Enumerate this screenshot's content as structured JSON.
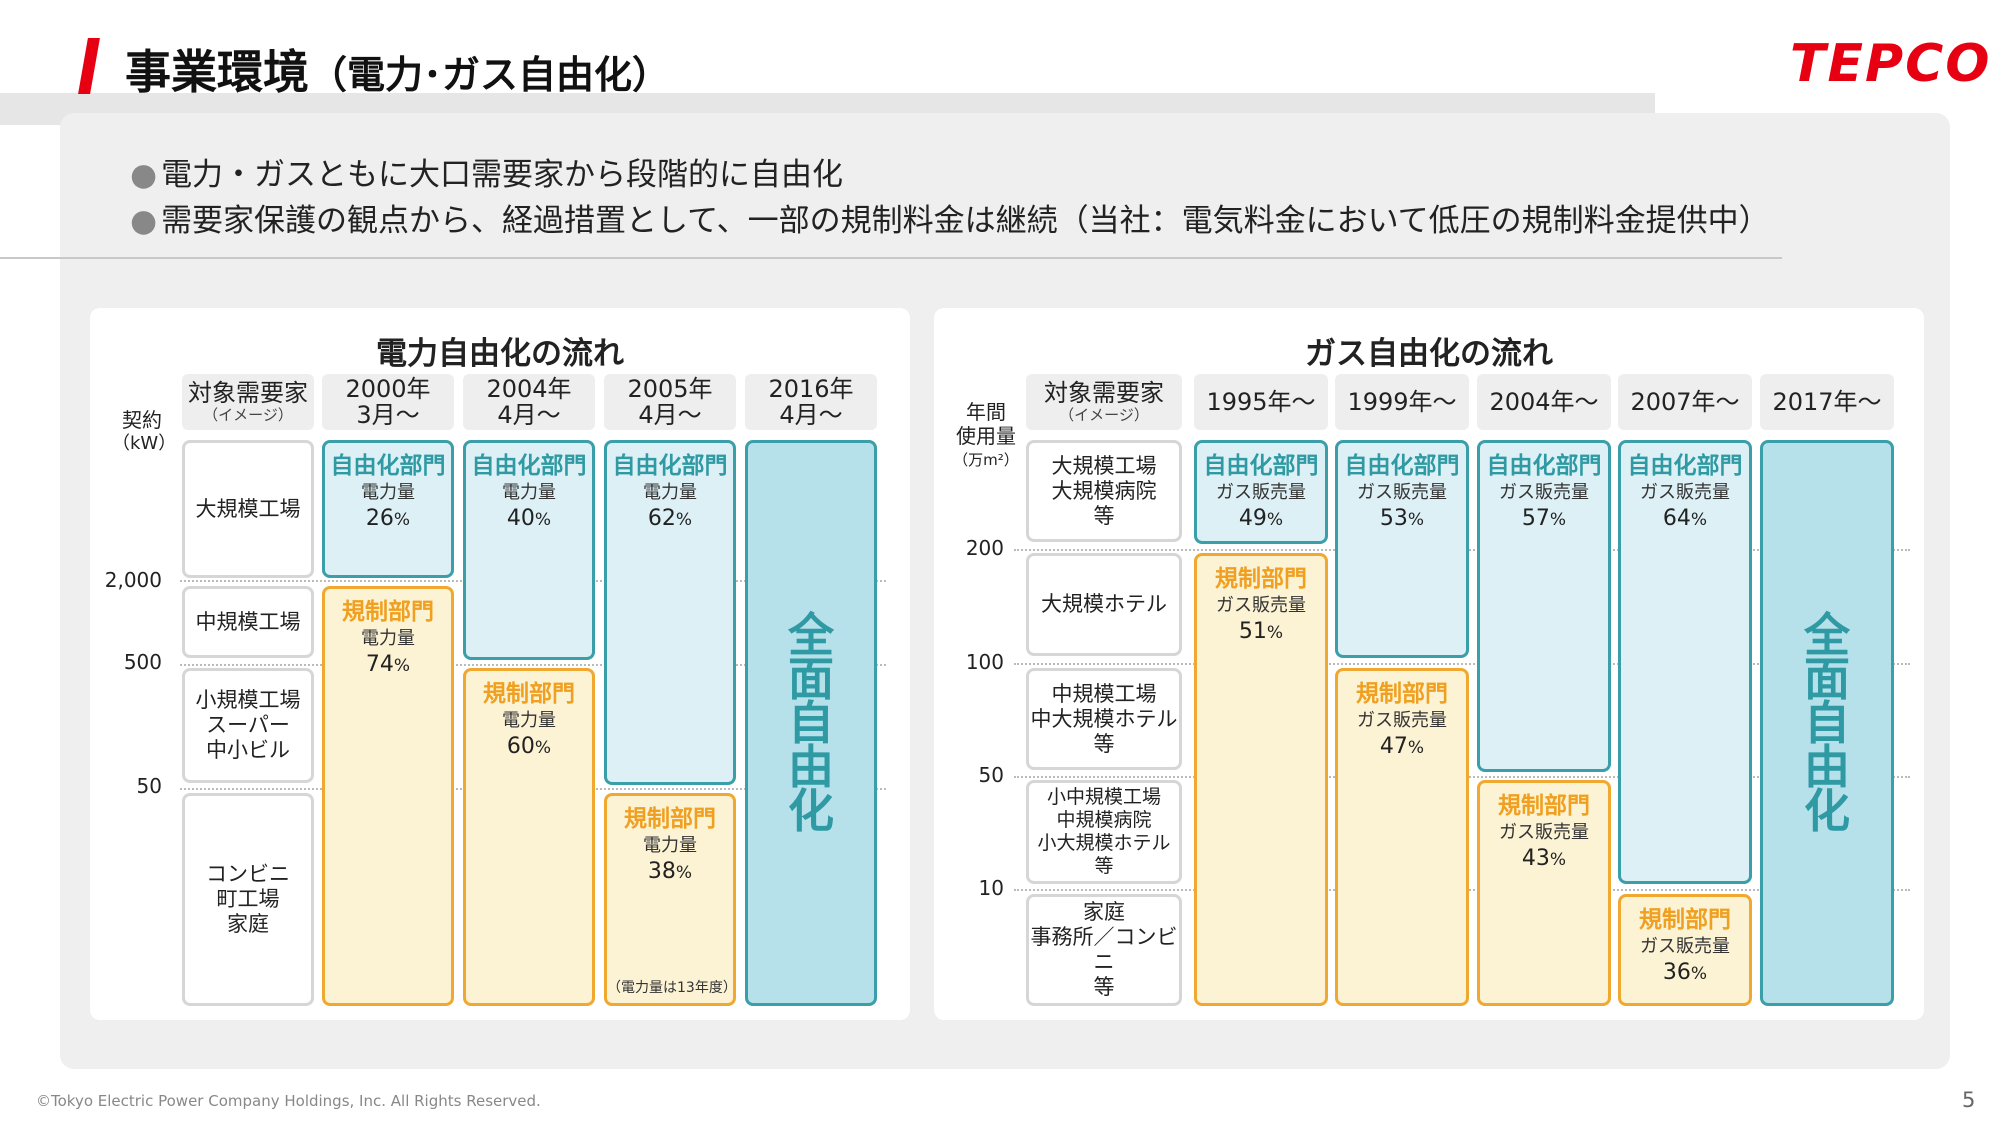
{
  "header": {
    "title_main": "事業環境",
    "title_sub": "（電力･ガス自由化）",
    "logo": "TEPCO"
  },
  "bullets": [
    "電力・ガスともに大口需要家から段階的に自由化",
    "需要家保護の観点から、経過措置として、一部の規制料金は継続（当社：電気料金において低圧の規制料金提供中）"
  ],
  "power": {
    "title": "電力自由化の流れ",
    "axis_title": "契約",
    "axis_unit": "（kW）",
    "ticks": [
      "2,000",
      "500",
      "50"
    ],
    "target_header": {
      "main": "対象需要家",
      "sub": "（イメージ）"
    },
    "years": [
      {
        "l1": "2000年",
        "l2": "3月～"
      },
      {
        "l1": "2004年",
        "l2": "4月～"
      },
      {
        "l1": "2005年",
        "l2": "4月～"
      },
      {
        "l1": "2016年",
        "l2": "4月～"
      }
    ],
    "rows": [
      "大規模工場",
      "中規模工場",
      "小規模工場\nスーパー\n中小ビル",
      "コンビニ\n町工場\n家庭"
    ],
    "lib_label": "自由化部門",
    "reg_label": "規制部門",
    "metric": "電力量",
    "cols": [
      {
        "lib": "26",
        "reg": "74"
      },
      {
        "lib": "40",
        "reg": "60"
      },
      {
        "lib": "62",
        "reg": "38"
      }
    ],
    "pct_sign": "%",
    "note": "（電力量は13年度）",
    "full": "全面自由化"
  },
  "gas": {
    "title": "ガス自由化の流れ",
    "axis_title": "年間\n使用量",
    "axis_unit": "（万m²）",
    "ticks": [
      "200",
      "100",
      "50",
      "10"
    ],
    "target_header": {
      "main": "対象需要家",
      "sub": "（イメージ）"
    },
    "years": [
      "1995年～",
      "1999年～",
      "2004年～",
      "2007年～",
      "2017年～"
    ],
    "rows": [
      "大規模工場\n大規模病院\n等",
      "大規模ホテル",
      "中規模工場\n中大規模ホテル\n等",
      "小中規模工場\n中規模病院\n小大規模ホテル\n等",
      "家庭\n事務所／コンビニ\n等"
    ],
    "lib_label": "自由化部門",
    "reg_label": "規制部門",
    "metric": "ガス販売量",
    "cols": [
      {
        "lib": "49",
        "reg": "51"
      },
      {
        "lib": "53",
        "reg": "47"
      },
      {
        "lib": "57",
        "reg": "43"
      },
      {
        "lib": "64",
        "reg": "36"
      }
    ],
    "pct_sign": "%",
    "full": "全面自由化"
  },
  "footer": {
    "copyright": "©Tokyo Electric Power Company Holdings, Inc. All Rights Reserved.",
    "page": "5"
  },
  "colors": {
    "accent_red": "#e60012",
    "lib_teal": "#3a9fa9",
    "reg_orange": "#f0a830"
  }
}
